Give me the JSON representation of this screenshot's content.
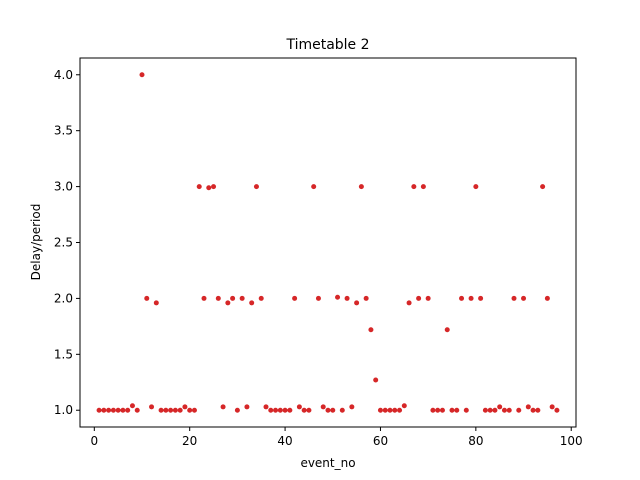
{
  "chart_data": {
    "type": "scatter",
    "title": "Timetable 2",
    "xlabel": "event_no",
    "ylabel": "Delay/period",
    "xlim": [
      -3,
      101
    ],
    "ylim": [
      0.85,
      4.15
    ],
    "xticks": [
      0,
      20,
      40,
      60,
      80,
      100
    ],
    "yticks": [
      1.0,
      1.5,
      2.0,
      2.5,
      3.0,
      3.5,
      4.0
    ],
    "xtick_labels": [
      "0",
      "20",
      "40",
      "60",
      "80",
      "100"
    ],
    "ytick_labels": [
      "1.0",
      "1.5",
      "2.0",
      "2.5",
      "3.0",
      "3.5",
      "4.0"
    ],
    "grid": false,
    "marker_color": "#d62728",
    "series": [
      {
        "x": [
          1,
          2,
          3,
          4,
          5,
          6,
          7,
          8,
          9,
          10,
          11,
          12,
          13,
          14,
          15,
          16,
          17,
          18,
          19,
          20,
          21,
          22,
          23,
          24,
          25,
          26,
          27,
          28,
          29,
          30,
          31,
          32,
          33,
          34,
          35,
          36,
          37,
          38,
          39,
          40,
          41,
          42,
          43,
          44,
          45,
          46,
          47,
          48,
          49,
          50,
          51,
          52,
          53,
          54,
          55,
          56,
          57,
          58,
          59,
          60,
          61,
          62,
          63,
          64,
          65,
          66,
          67,
          68,
          69,
          70,
          71,
          72,
          73,
          74,
          75,
          76,
          77,
          78,
          79,
          80,
          81,
          82,
          83,
          84,
          85,
          86,
          87,
          88,
          89,
          90,
          91,
          92,
          93,
          94,
          95,
          96,
          97
        ],
        "y": [
          1.0,
          1.0,
          1.0,
          1.0,
          1.0,
          1.0,
          1.0,
          1.04,
          1.0,
          4.0,
          2.0,
          1.03,
          1.96,
          1.0,
          1.0,
          1.0,
          1.0,
          1.0,
          1.03,
          1.0,
          1.0,
          3.0,
          2.0,
          2.99,
          3.0,
          2.0,
          1.03,
          1.96,
          2.0,
          1.0,
          2.0,
          1.03,
          1.96,
          3.0,
          2.0,
          1.03,
          1.0,
          1.0,
          1.0,
          1.0,
          1.0,
          2.0,
          1.03,
          1.0,
          1.0,
          3.0,
          2.0,
          1.03,
          1.0,
          1.0,
          2.01,
          1.0,
          2.0,
          1.03,
          1.96,
          3.0,
          2.0,
          1.72,
          1.27,
          1.0,
          1.0,
          1.0,
          1.0,
          1.0,
          1.04,
          1.96,
          3.0,
          2.0,
          3.0,
          2.0,
          1.0,
          1.0,
          1.0,
          1.72,
          1.0,
          1.0,
          2.0,
          1.0,
          2.0,
          3.0,
          2.0,
          1.0,
          1.0,
          1.0,
          1.03,
          1.0,
          1.0,
          2.0,
          1.0,
          2.0,
          1.03,
          1.0,
          1.0,
          3.0,
          2.0,
          1.03,
          1.0
        ]
      }
    ]
  }
}
